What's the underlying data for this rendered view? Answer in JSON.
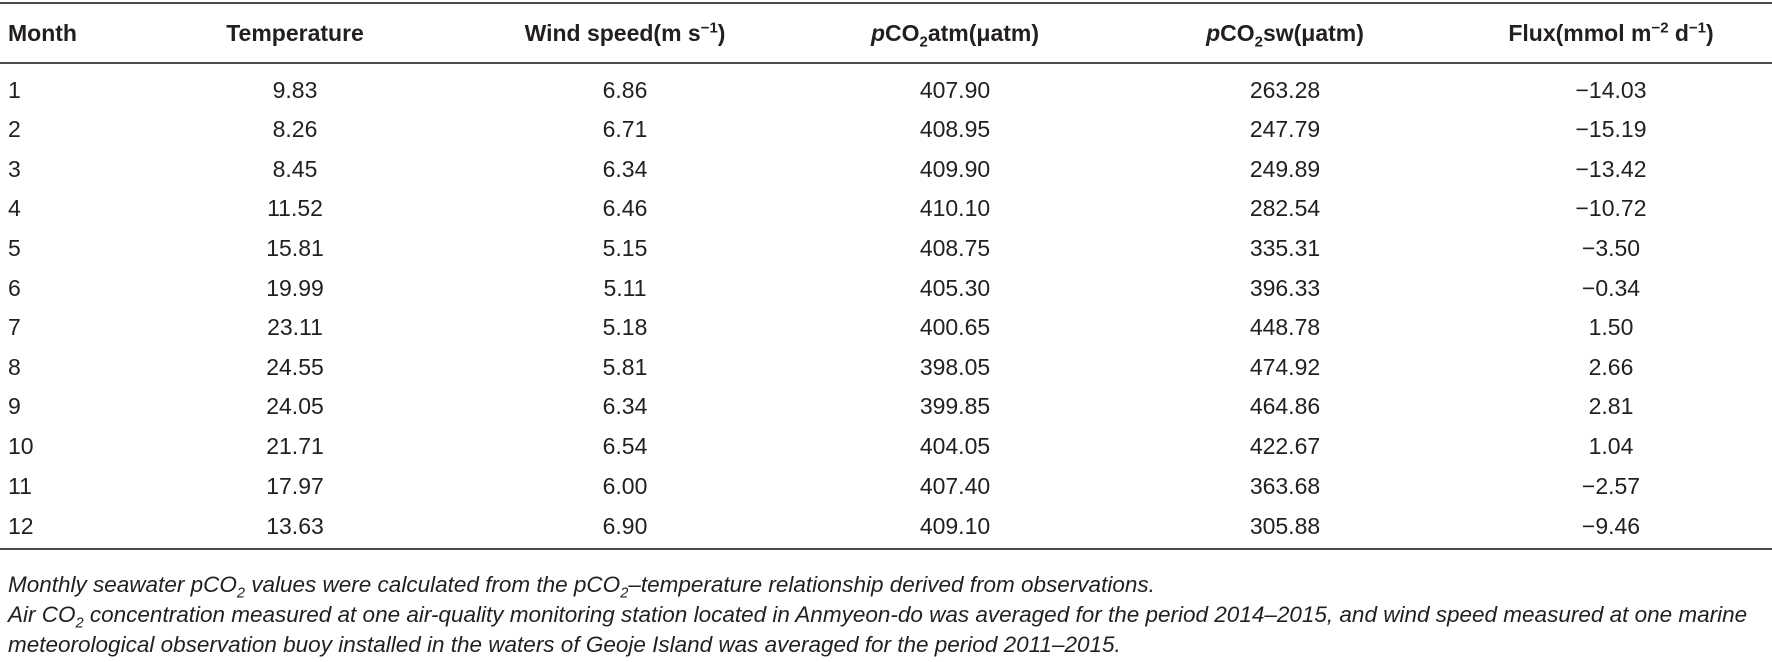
{
  "table": {
    "headers": {
      "month": "Month",
      "temperature": "Temperature",
      "wind_speed": {
        "text": "Wind speed(m s",
        "sup": "−1",
        "close": ")"
      },
      "pco2atm": {
        "italic": "p",
        "co": "CO",
        "sub": "2",
        "rest": "atm(μatm)"
      },
      "pco2sw": {
        "italic": "p",
        "co": "CO",
        "sub": "2",
        "rest": "sw(μatm)"
      },
      "flux": {
        "text": "Flux(mmol m",
        "sup1": "−2",
        "mid": " d",
        "sup2": "−1",
        "close": ")"
      }
    },
    "rows": [
      [
        "1",
        "9.83",
        "6.86",
        "407.90",
        "263.28",
        "−14.03"
      ],
      [
        "2",
        "8.26",
        "6.71",
        "408.95",
        "247.79",
        "−15.19"
      ],
      [
        "3",
        "8.45",
        "6.34",
        "409.90",
        "249.89",
        "−13.42"
      ],
      [
        "4",
        "11.52",
        "6.46",
        "410.10",
        "282.54",
        "−10.72"
      ],
      [
        "5",
        "15.81",
        "5.15",
        "408.75",
        "335.31",
        "−3.50"
      ],
      [
        "6",
        "19.99",
        "5.11",
        "405.30",
        "396.33",
        "−0.34"
      ],
      [
        "7",
        "23.11",
        "5.18",
        "400.65",
        "448.78",
        "1.50"
      ],
      [
        "8",
        "24.55",
        "5.81",
        "398.05",
        "474.92",
        "2.66"
      ],
      [
        "9",
        "24.05",
        "6.34",
        "399.85",
        "464.86",
        "2.81"
      ],
      [
        "10",
        "21.71",
        "6.54",
        "404.05",
        "422.67",
        "1.04"
      ],
      [
        "11",
        "17.97",
        "6.00",
        "407.40",
        "363.68",
        "−2.57"
      ],
      [
        "12",
        "13.63",
        "6.90",
        "409.10",
        "305.88",
        "−9.46"
      ]
    ]
  },
  "notes": {
    "note1": {
      "a": "Monthly seawater pCO",
      "sub1": "2",
      "b": " values were calculated from the pCO",
      "sub2": "2",
      "c": "–temperature relationship derived from observations."
    },
    "note2": {
      "a": "Air CO",
      "sub1": "2",
      "b": " concentration measured at one air-quality monitoring station located in Anmyeon-do was averaged for the period 2014–2015, and wind speed measured at one marine meteorological observation buoy installed in the waters of Geoje Island was averaged for the period 2011–2015."
    }
  }
}
